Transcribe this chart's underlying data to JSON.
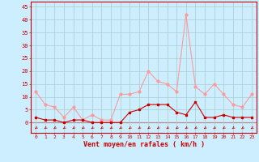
{
  "hours": [
    0,
    1,
    2,
    3,
    4,
    5,
    6,
    7,
    8,
    9,
    10,
    11,
    12,
    13,
    14,
    15,
    16,
    17,
    18,
    19,
    20,
    21,
    22,
    23
  ],
  "wind_mean": [
    2,
    1,
    1,
    0,
    1,
    1,
    0,
    0,
    0,
    0,
    4,
    5,
    7,
    7,
    7,
    4,
    3,
    8,
    2,
    2,
    3,
    2,
    2,
    2
  ],
  "wind_gust": [
    12,
    7,
    6,
    2,
    6,
    1,
    3,
    1,
    1,
    11,
    11,
    12,
    20,
    16,
    15,
    12,
    42,
    14,
    11,
    15,
    11,
    7,
    6,
    11
  ],
  "bg_color": "#cceeff",
  "grid_color": "#aacccc",
  "line_mean_color": "#cc0000",
  "line_gust_color": "#ff9999",
  "xlabel": "Vent moyen/en rafales ( km/h )",
  "ylabel_ticks": [
    0,
    5,
    10,
    15,
    20,
    25,
    30,
    35,
    40,
    45
  ],
  "ylim": [
    -4,
    47
  ],
  "xlim": [
    -0.5,
    23.5
  ],
  "xlabel_color": "#cc0000",
  "tick_color": "#cc0000",
  "axis_color": "#cc0000"
}
